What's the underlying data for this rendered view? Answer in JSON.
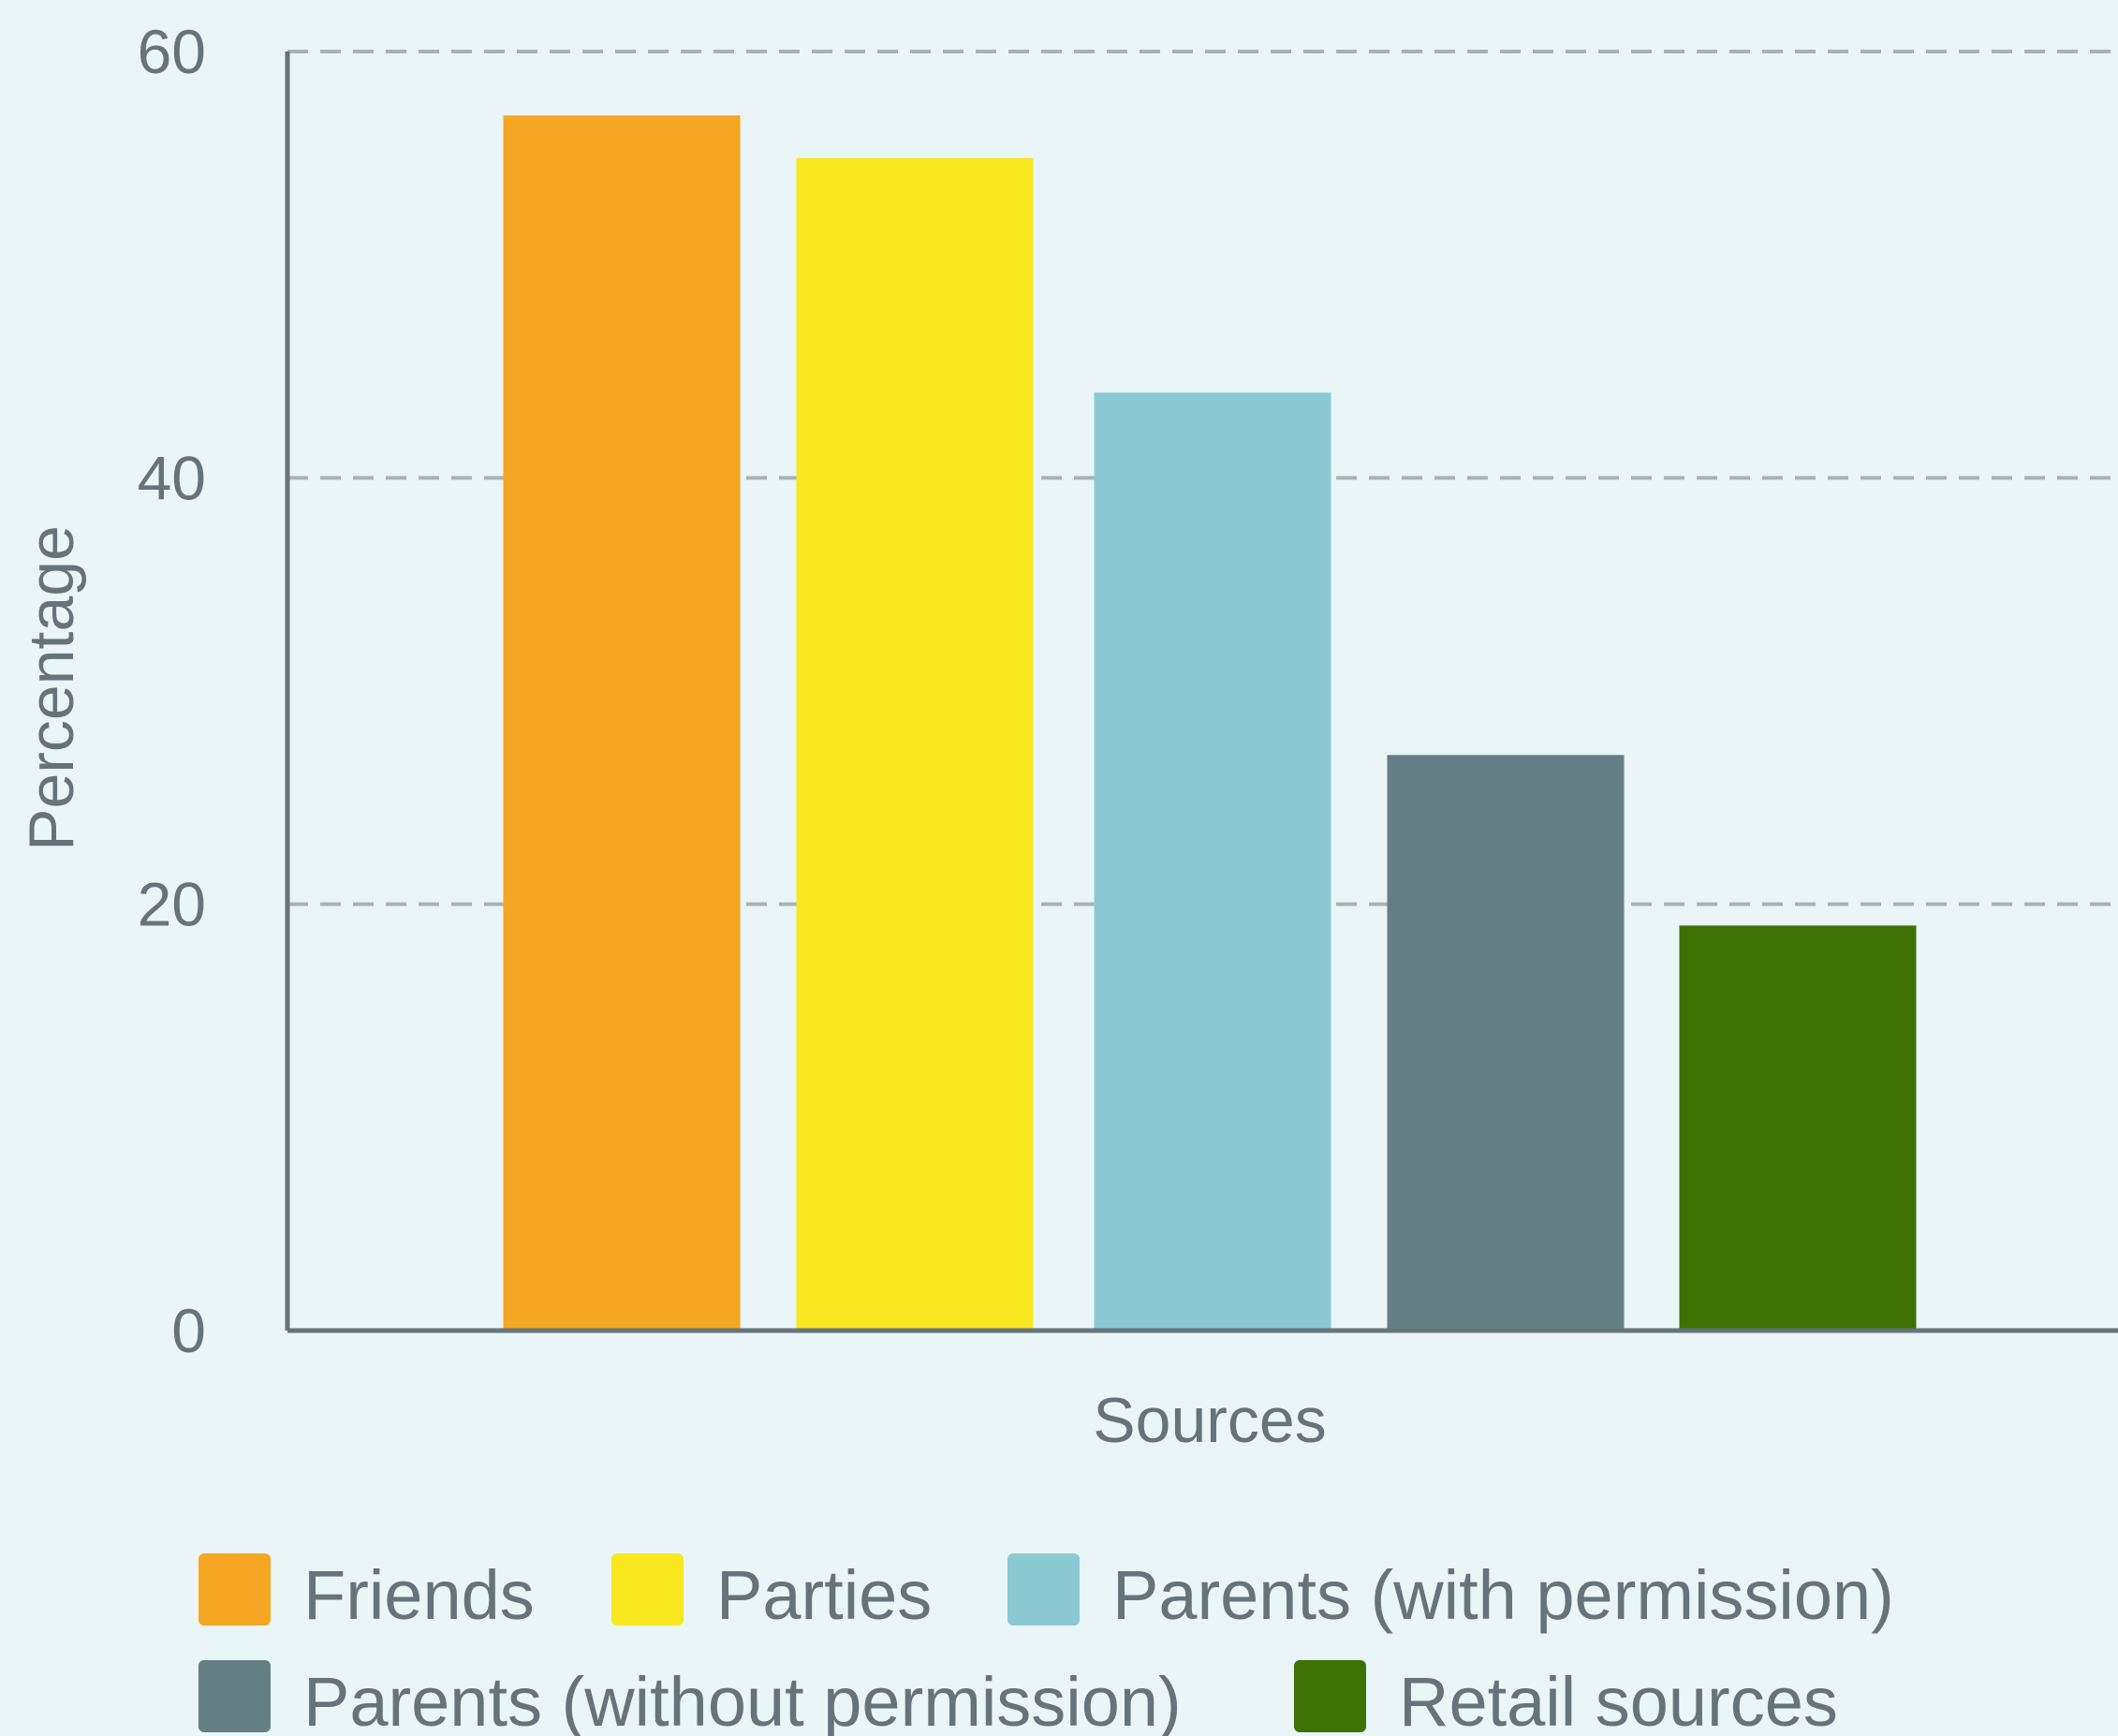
{
  "chart_data": {
    "type": "bar",
    "title": "",
    "xlabel": "Sources",
    "ylabel": "Percentage",
    "ylim": [
      0,
      60
    ],
    "yticks": [
      0,
      20,
      40,
      60
    ],
    "grid": true,
    "legend_position": "bottom",
    "categories": [
      "Friends",
      "Parties",
      "Parents (with permission)",
      "Parents (without permission)",
      "Retail sources"
    ],
    "values": [
      57,
      55,
      44,
      27,
      19
    ],
    "colors": [
      "#f5a623",
      "#f7e81f",
      "#8ccad3",
      "#647f84",
      "#3f7205"
    ]
  }
}
